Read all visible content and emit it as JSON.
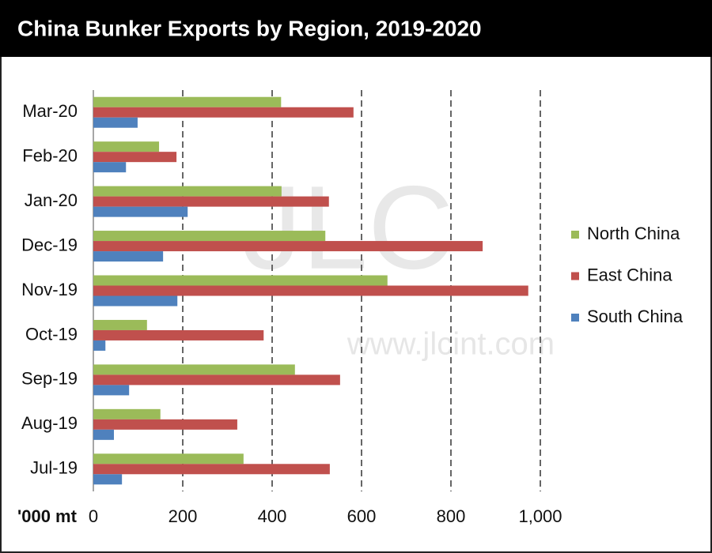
{
  "chart_data": {
    "type": "hbar",
    "title": "China Bunker Exports by Region, 2019-2020",
    "x_axis_label": "'000 mt",
    "watermark": [
      "JLC",
      "www.jlcint.com"
    ],
    "categories": [
      "Jul-19",
      "Aug-19",
      "Sep-19",
      "Oct-19",
      "Nov-19",
      "Dec-19",
      "Jan-20",
      "Feb-20",
      "Mar-20"
    ],
    "series": [
      {
        "name": "North China",
        "color": "#9bbb59",
        "values": [
          336,
          150,
          451,
          120,
          658,
          519,
          421,
          147,
          420
        ]
      },
      {
        "name": "East China",
        "color": "#c0504d",
        "values": [
          529,
          322,
          552,
          381,
          973,
          871,
          527,
          186,
          582
        ]
      },
      {
        "name": "South China",
        "color": "#4f81bd",
        "values": [
          64,
          46,
          80,
          27,
          188,
          156,
          211,
          73,
          99
        ]
      }
    ],
    "xlim": [
      0,
      1000
    ],
    "xticks": [
      0,
      200,
      400,
      600,
      800,
      {
        "value": 1000,
        "label": "1,000"
      }
    ],
    "grid": true,
    "legend": "right"
  }
}
